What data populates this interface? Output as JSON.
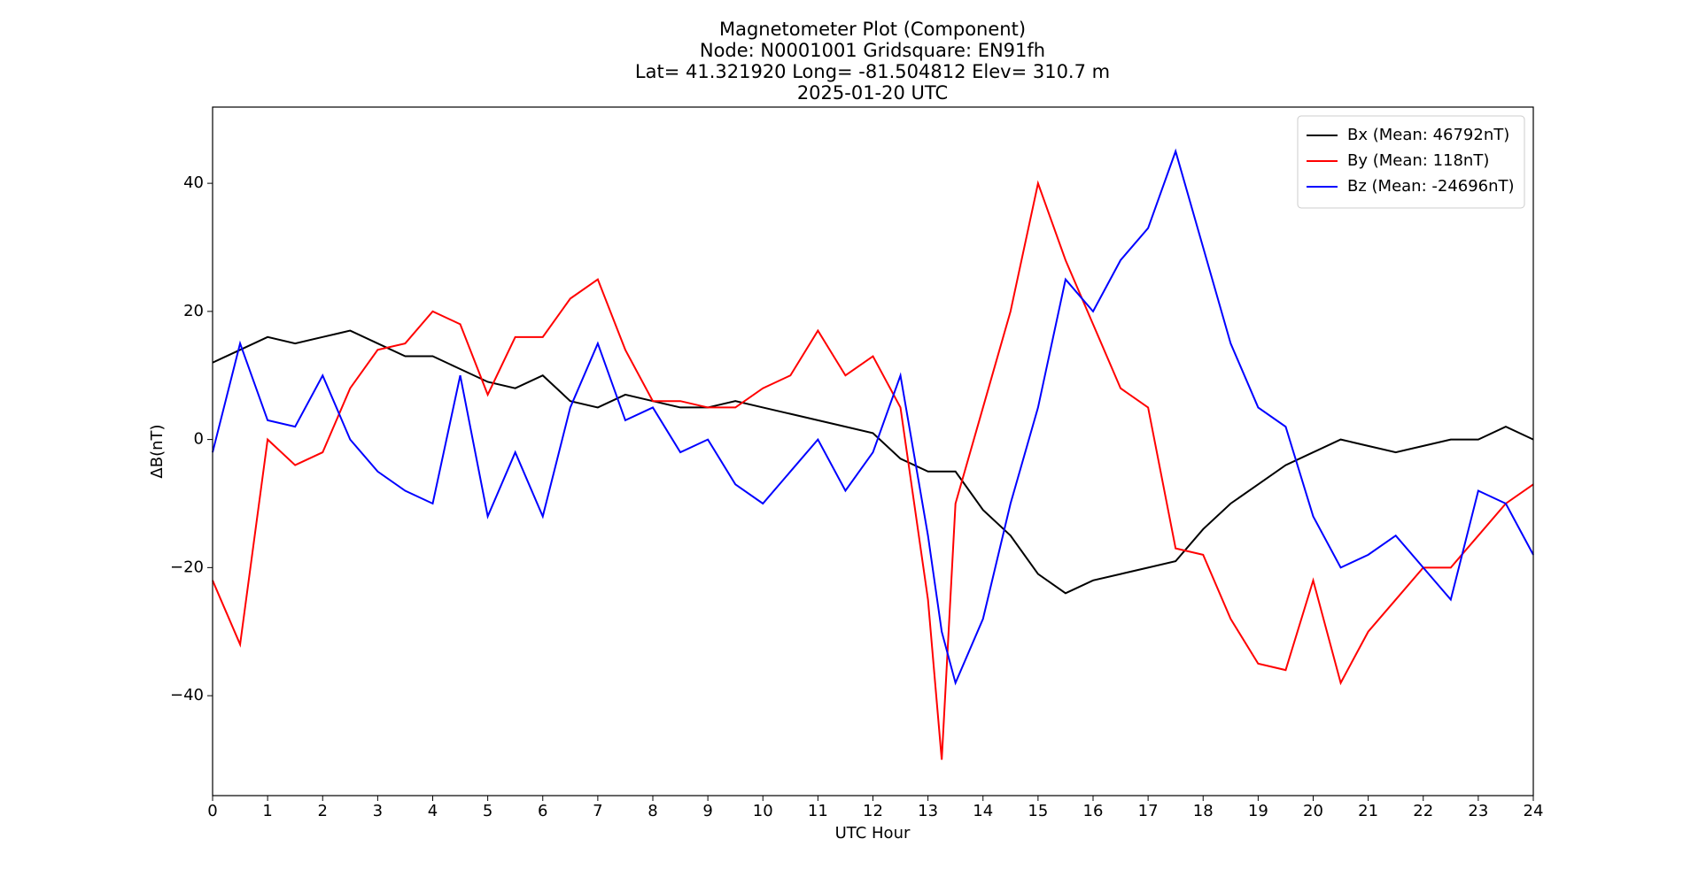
{
  "chart_data": {
    "type": "line",
    "title": [
      "Magnetometer Plot (Component)",
      "Node:  N0001001     Gridsquare:  EN91fh",
      "Lat= 41.321920    Long= -81.504812    Elev= 310.7 m",
      "2025-01-20  UTC"
    ],
    "x_label": "UTC Hour",
    "y_label": "ΔB(nT)",
    "x": [
      0,
      0.5,
      1,
      1.5,
      2,
      2.5,
      3,
      3.5,
      4,
      4.5,
      5,
      5.5,
      6,
      6.5,
      7,
      7.5,
      8,
      8.5,
      9,
      9.5,
      10,
      10.5,
      11,
      11.5,
      12,
      12.5,
      13,
      13.25,
      13.5,
      14,
      14.5,
      15,
      15.5,
      16,
      16.5,
      17,
      17.5,
      18,
      18.5,
      19,
      19.5,
      20,
      20.5,
      21,
      21.5,
      22,
      22.5,
      23,
      23.5,
      24
    ],
    "series": [
      {
        "name": "Bx (Mean: 46792nT)",
        "color": "#000000",
        "values": [
          12,
          14,
          16,
          15,
          16,
          17,
          15,
          13,
          13,
          11,
          9,
          8,
          10,
          6,
          5,
          7,
          6,
          5,
          5,
          6,
          5,
          4,
          3,
          2,
          1,
          -3,
          -5,
          -5,
          -5,
          -11,
          -15,
          -21,
          -24,
          -22,
          -21,
          -20,
          -19,
          -14,
          -10,
          -7,
          -4,
          -2,
          0,
          -1,
          -2,
          -1,
          0,
          0,
          2,
          0
        ]
      },
      {
        "name": "By (Mean: 118nT)",
        "color": "#ff0000",
        "values": [
          -22,
          -32,
          0,
          -4,
          -2,
          8,
          14,
          15,
          20,
          18,
          7,
          16,
          16,
          22,
          25,
          14,
          6,
          6,
          5,
          5,
          8,
          10,
          17,
          10,
          13,
          5,
          -25,
          -50,
          -10,
          5,
          20,
          40,
          28,
          18,
          8,
          5,
          -17,
          -18,
          -28,
          -35,
          -36,
          -22,
          -38,
          -30,
          -25,
          -20,
          -20,
          -15,
          -10,
          -7
        ]
      },
      {
        "name": "Bz (Mean: -24696nT)",
        "color": "#0000ff",
        "values": [
          -2,
          15,
          3,
          2,
          10,
          0,
          -5,
          -8,
          -10,
          10,
          -12,
          -2,
          -12,
          5,
          15,
          3,
          5,
          -2,
          0,
          -7,
          -10,
          -5,
          0,
          -8,
          -2,
          10,
          -15,
          -30,
          -38,
          -28,
          -10,
          5,
          25,
          20,
          28,
          33,
          45,
          30,
          15,
          5,
          2,
          -12,
          -20,
          -18,
          -15,
          -20,
          -25,
          -8,
          -10,
          -18
        ]
      }
    ],
    "xlim": [
      0,
      24
    ],
    "xticks": [
      0,
      1,
      2,
      3,
      4,
      5,
      6,
      7,
      8,
      9,
      10,
      11,
      12,
      13,
      14,
      15,
      16,
      17,
      18,
      19,
      20,
      21,
      22,
      23,
      24
    ],
    "ylim": [
      -55.6,
      51.9
    ],
    "yticks": [
      {
        "value": -40,
        "label": "−40"
      },
      {
        "value": -20,
        "label": "−20"
      },
      0,
      20,
      40
    ],
    "grid": false,
    "legend": "upper right"
  }
}
